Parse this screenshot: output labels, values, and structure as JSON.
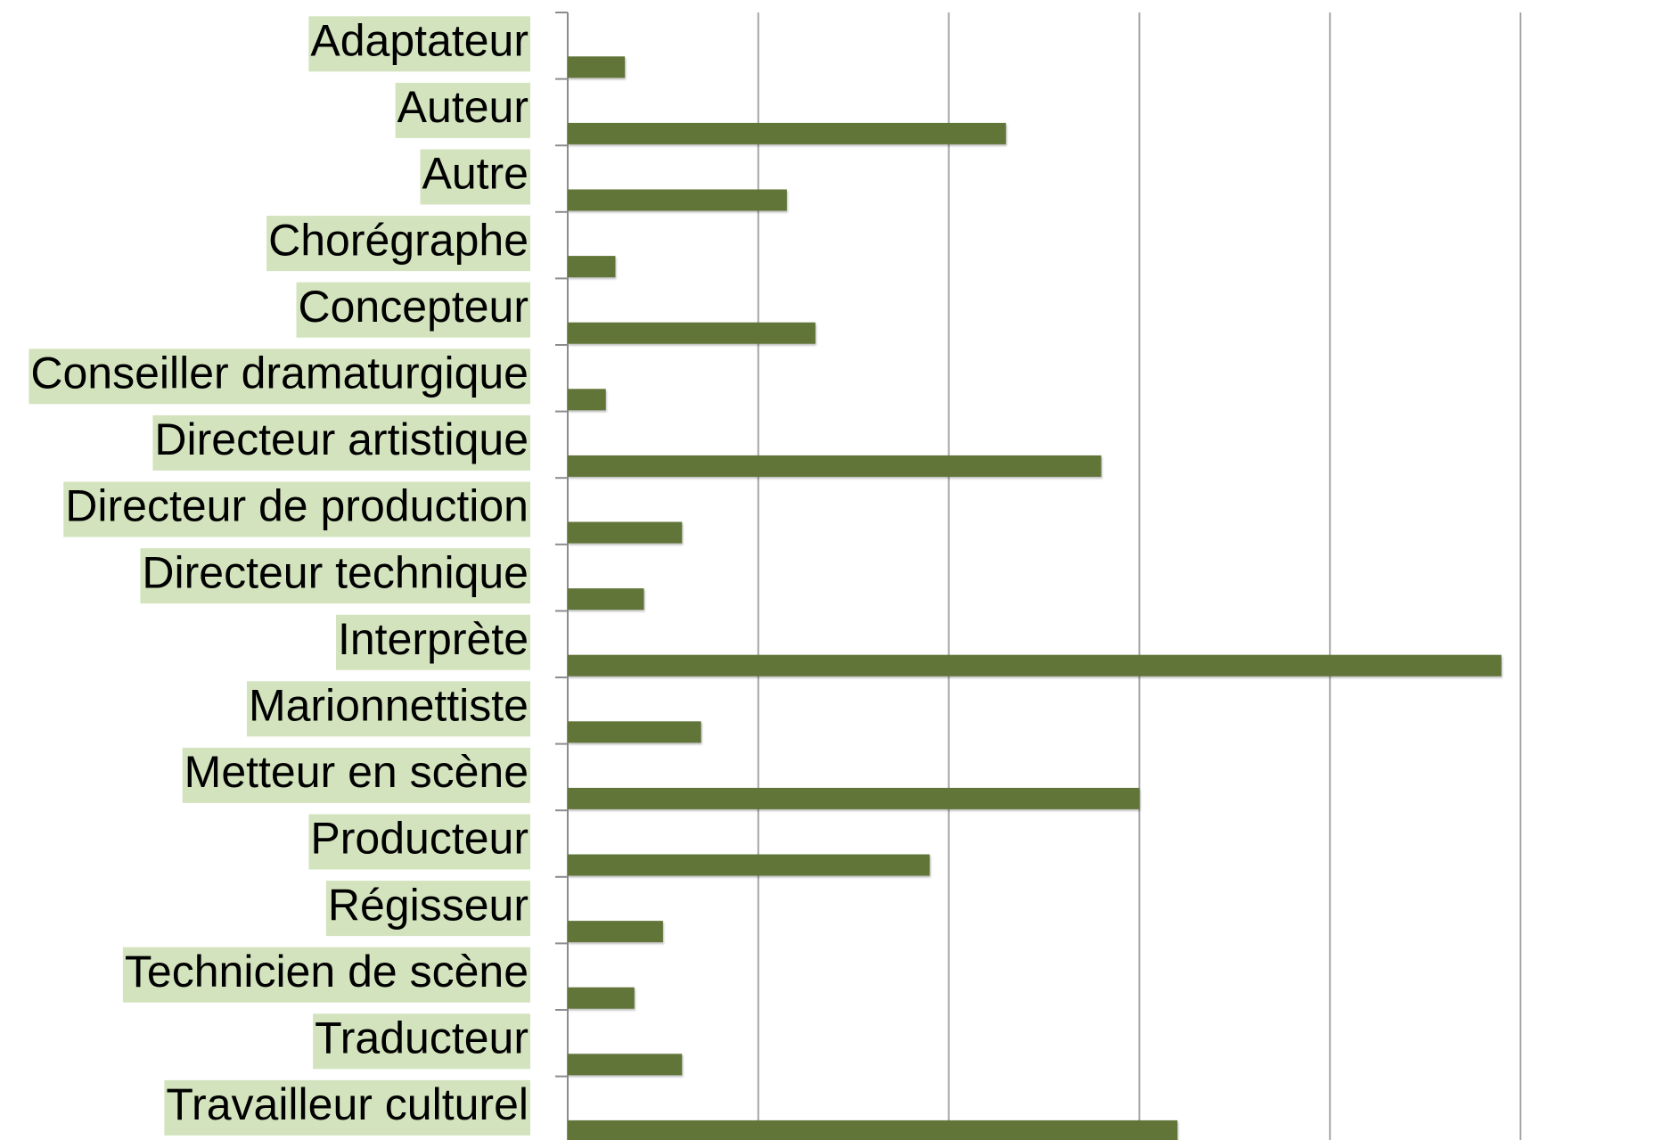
{
  "chart_data": {
    "type": "barh",
    "categories": [
      "Adaptateur",
      "Auteur",
      "Autre",
      "Chorégraphe",
      "Concepteur",
      "Conseiller dramaturgique",
      "Directeur artistique",
      "Directeur de production",
      "Directeur technique",
      "Interprète",
      "Marionnettiste",
      "Metteur en scène",
      "Producteur",
      "Régisseur",
      "Technicien de scène",
      "Traducteur",
      "Travailleur culturel"
    ],
    "values": [
      0.3,
      2.3,
      1.15,
      0.25,
      1.3,
      0.2,
      2.8,
      0.6,
      0.4,
      4.9,
      0.7,
      3.0,
      1.9,
      0.5,
      0.35,
      0.6,
      3.2
    ],
    "color": "#627538",
    "xlim": [
      0,
      5
    ],
    "xticks": [
      0,
      1,
      2,
      3,
      4,
      5
    ],
    "grid": true
  }
}
